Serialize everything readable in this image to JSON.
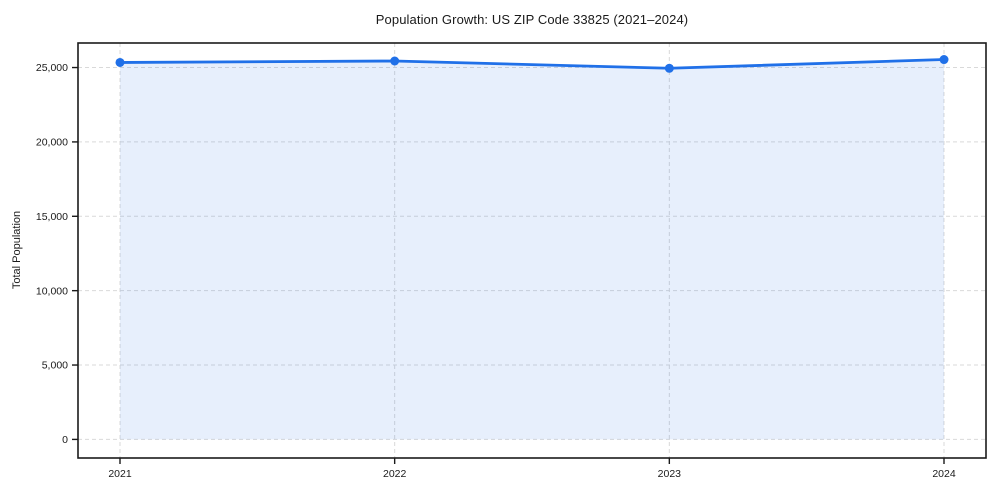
{
  "chart_data": {
    "type": "line",
    "title": "Population Growth: US ZIP Code 33825 (2021–2024)",
    "xlabel": "",
    "ylabel": "Total Population",
    "categories": [
      "2021",
      "2022",
      "2023",
      "2024"
    ],
    "series": [
      {
        "name": "Total Population",
        "values": [
          25340,
          25440,
          24950,
          25540
        ]
      }
    ],
    "ylim": [
      -1250,
      26650
    ],
    "y_ticks": [
      0,
      5000,
      10000,
      15000,
      20000,
      25000
    ],
    "y_tick_labels": [
      "0",
      "5,000",
      "10,000",
      "15,000",
      "20,000",
      "25,000"
    ],
    "grid": "dashed, horizontal and vertical at ticks",
    "legend": "none",
    "style": {
      "line_color": "#2070e8",
      "marker": "circle",
      "marker_color": "#2070e8",
      "fill_under": true,
      "fill_color": "#2070e8",
      "fill_opacity": 0.11,
      "fill_baseline": 0,
      "gridline_color": "#d9d9d9",
      "spine_color": "#1a1a1a",
      "background": "#ffffff"
    }
  }
}
